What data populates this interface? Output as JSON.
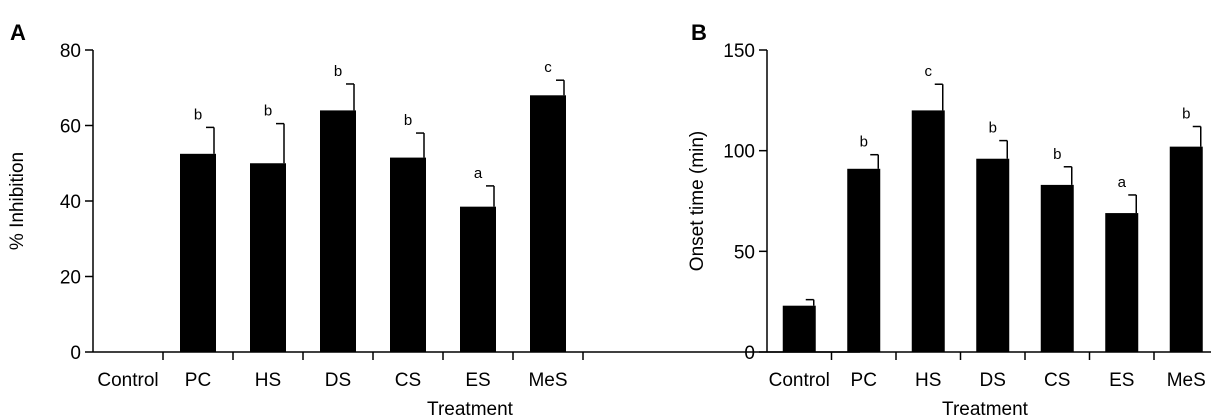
{
  "chart_data": [
    {
      "type": "bar",
      "panel_label": "A",
      "xlabel": "Treatment",
      "ylabel": "% Inhibition",
      "ylim": [
        0,
        80
      ],
      "yticks": [
        0,
        20,
        40,
        60,
        80
      ],
      "categories": [
        "Control",
        "PC",
        "HS",
        "DS",
        "CS",
        "ES",
        "MeS"
      ],
      "values": [
        0,
        52.5,
        50,
        64,
        51.5,
        38.5,
        68
      ],
      "errors": [
        0,
        7,
        10.5,
        7,
        6.5,
        5.5,
        4
      ],
      "significance": [
        "",
        "b",
        "b",
        "b",
        "b",
        "a",
        "c"
      ],
      "bar_color": "#000000",
      "grid": false
    },
    {
      "type": "bar",
      "panel_label": "B",
      "xlabel": "Treatment",
      "ylabel": "Onset time (min)",
      "ylim": [
        0,
        150
      ],
      "yticks": [
        0,
        50,
        100,
        150
      ],
      "categories": [
        "Control",
        "PC",
        "HS",
        "DS",
        "CS",
        "ES",
        "MeS"
      ],
      "values": [
        23,
        91,
        120,
        96,
        83,
        69,
        102
      ],
      "errors": [
        3,
        7,
        13,
        9,
        9,
        9,
        10
      ],
      "significance": [
        "",
        "b",
        "c",
        "b",
        "b",
        "a",
        "b"
      ],
      "bar_color": "#000000",
      "grid": false
    }
  ]
}
